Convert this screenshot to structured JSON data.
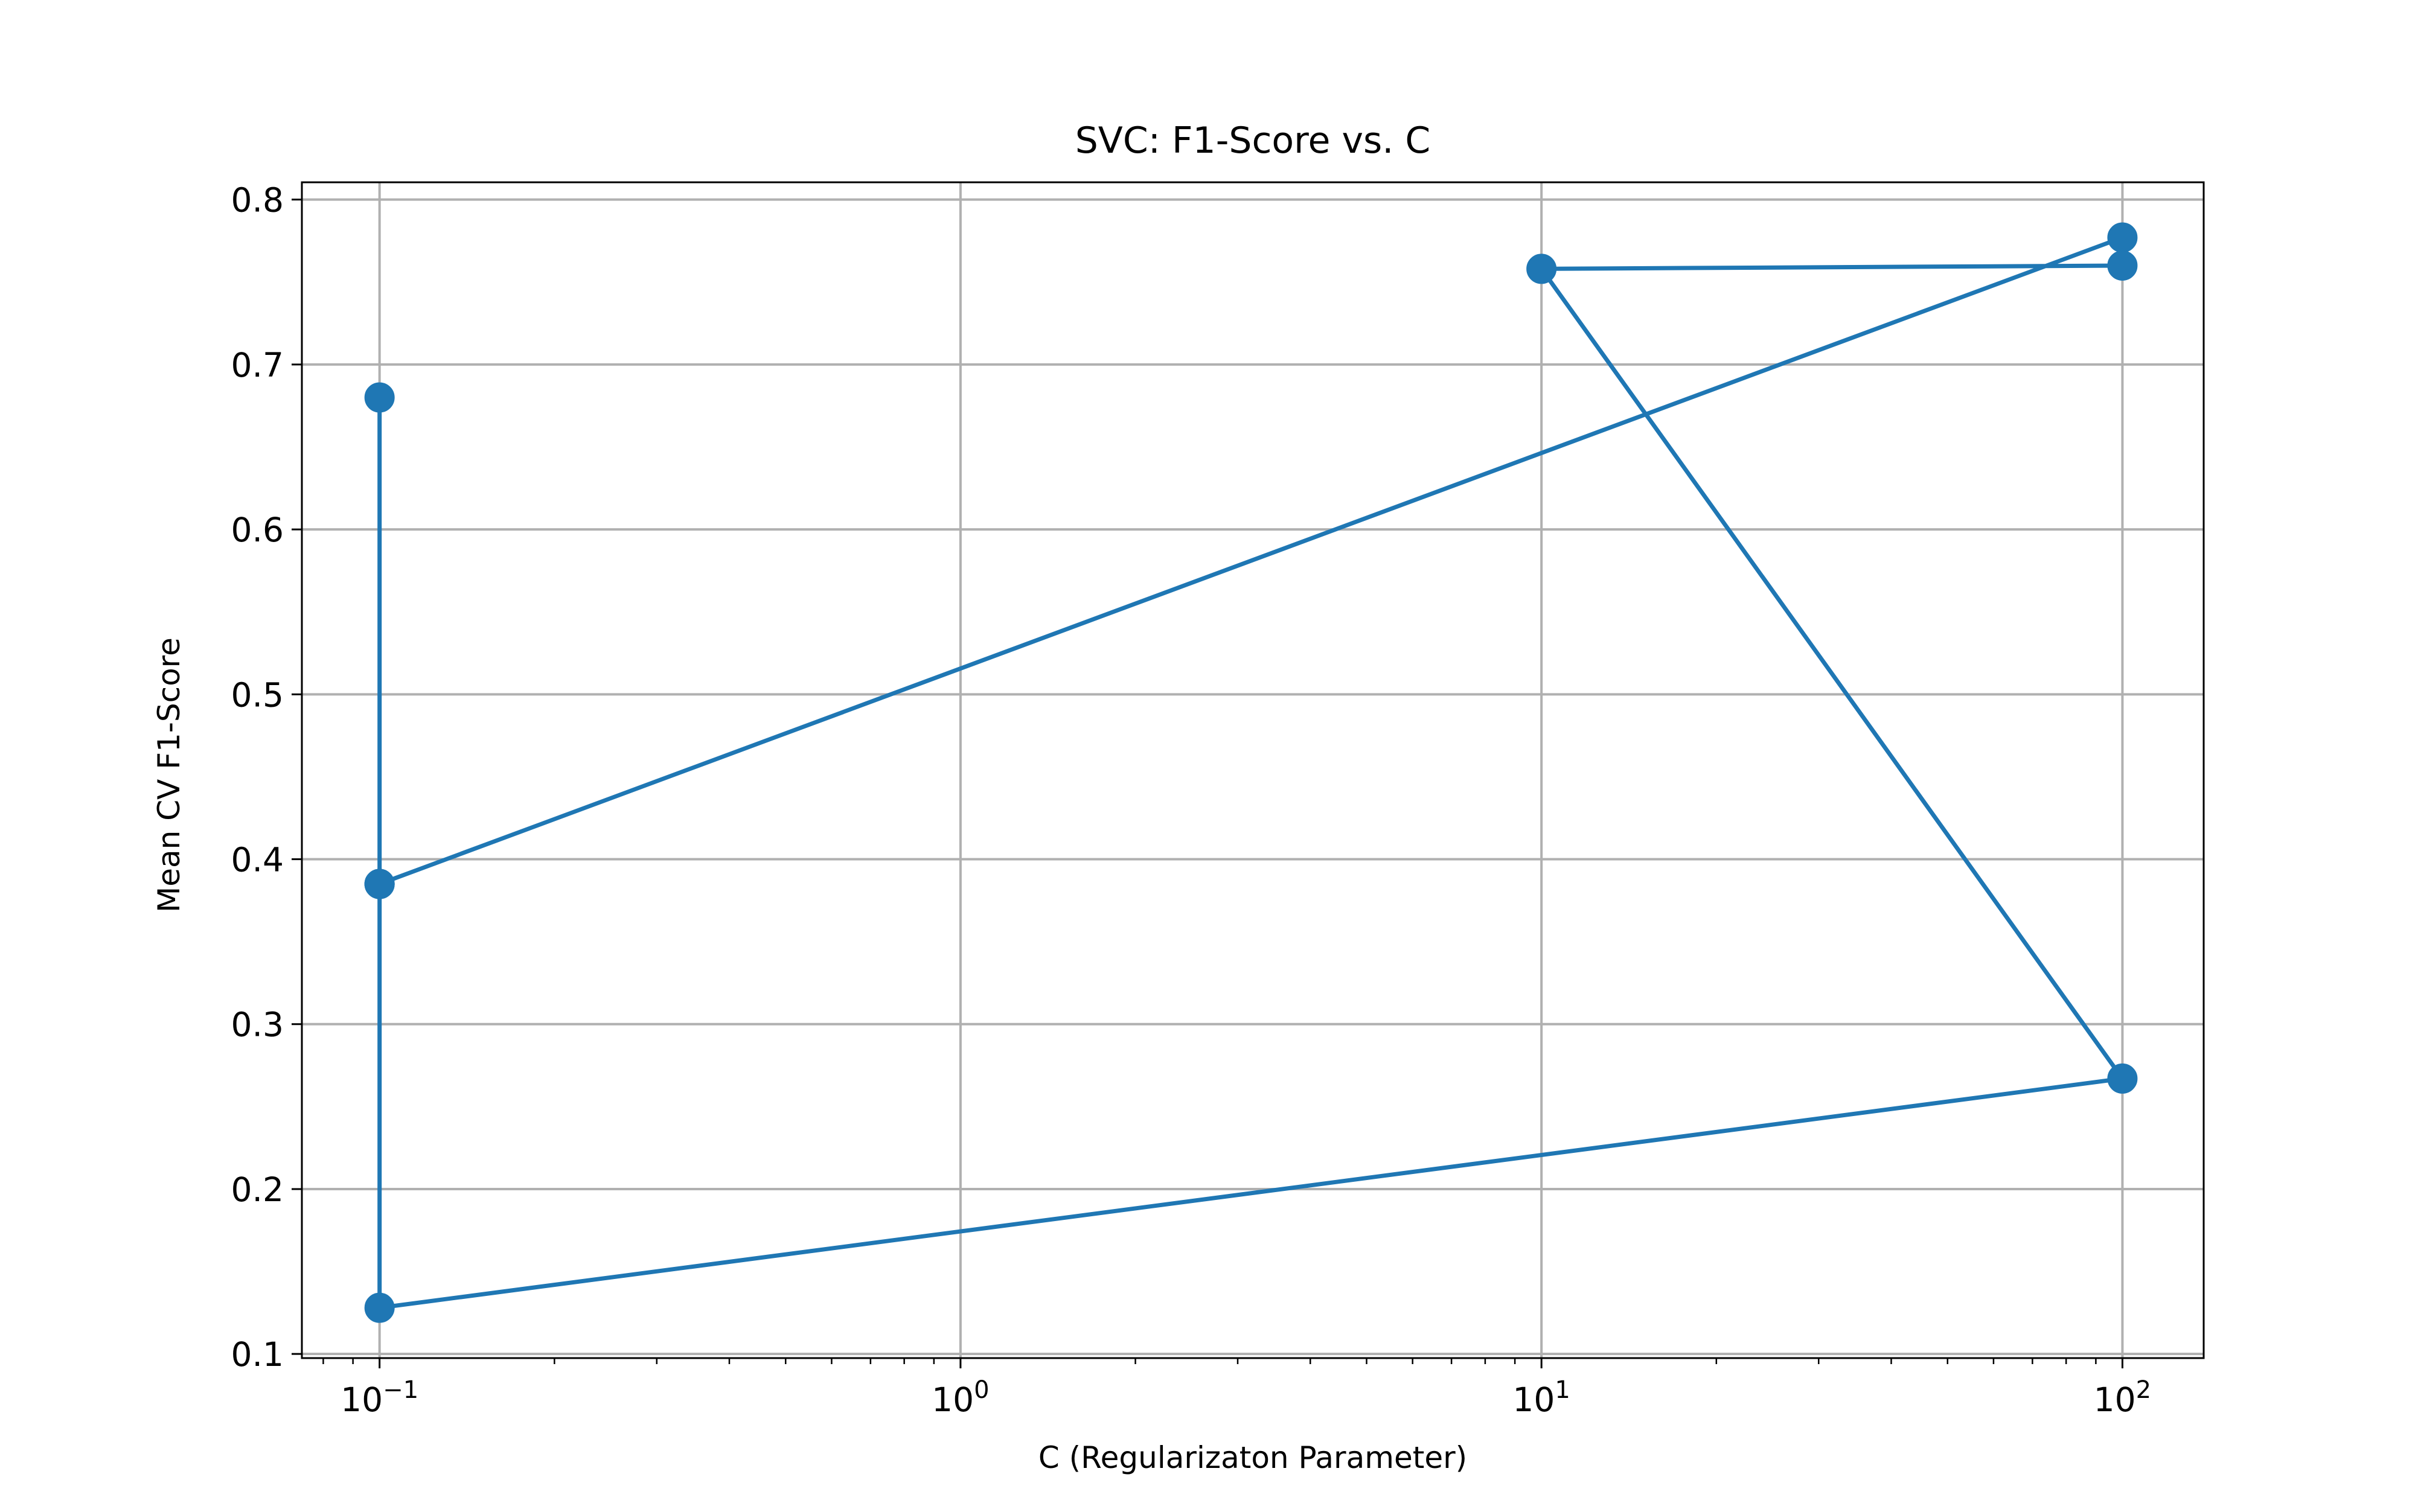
{
  "chart_data": {
    "type": "line",
    "title": "SVC: F1-Score vs. C",
    "xlabel": "C (Regularizaton Parameter)",
    "ylabel": "Mean CV F1-Score",
    "xscale": "log",
    "xlim": [
      0.0735,
      138
    ],
    "ylim": [
      0.0975,
      0.8105
    ],
    "grid": true,
    "x_ticks": [
      {
        "value": 0.1,
        "base": "10",
        "exp": "−1"
      },
      {
        "value": 1,
        "base": "10",
        "exp": "0"
      },
      {
        "value": 10,
        "base": "10",
        "exp": "1"
      },
      {
        "value": 100,
        "base": "10",
        "exp": "2"
      }
    ],
    "y_ticks": [
      {
        "value": 0.1,
        "label": "0.1"
      },
      {
        "value": 0.2,
        "label": "0.2"
      },
      {
        "value": 0.3,
        "label": "0.3"
      },
      {
        "value": 0.4,
        "label": "0.4"
      },
      {
        "value": 0.5,
        "label": "0.5"
      },
      {
        "value": 0.6,
        "label": "0.6"
      },
      {
        "value": 0.7,
        "label": "0.7"
      },
      {
        "value": 0.8,
        "label": "0.8"
      }
    ],
    "series": [
      {
        "color": "#1f77b4",
        "marker": "circle",
        "x": [
          0.1,
          0.1,
          0.1,
          100,
          100,
          10,
          100,
          0.1,
          0.1
        ],
        "y": [
          0.68,
          0.385,
          0.385,
          0.777,
          0.76,
          0.758,
          0.267,
          0.128,
          0.385
        ]
      }
    ]
  }
}
